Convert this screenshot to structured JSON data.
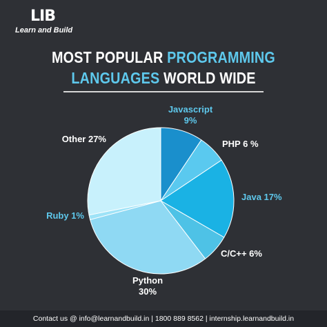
{
  "brand": {
    "mark": "LIB",
    "name": "Learn and Build"
  },
  "title": {
    "line1_a": "MOST POPULAR ",
    "line1_b": "PROGRAMMING",
    "line2_a": "LANGUAGES",
    "line2_b": " WORLD WIDE"
  },
  "footer": {
    "text": "Contact us @ info@learnandbuild.in | 1800 889 8562 | internship.learnandbuild.in"
  },
  "colors": {
    "background": "#2e3035",
    "accent": "#5ec8ec",
    "label_blue": "#5ec8ec",
    "label_white": "#ffffff"
  },
  "chart_data": {
    "type": "pie",
    "start_angle_deg": 0,
    "slices": [
      {
        "name": "Javascript",
        "value": 9,
        "label_line1": "Javascript",
        "label_line2": "9%",
        "color": "#1a8fcc",
        "label_color": "#5ec8ec"
      },
      {
        "name": "PHP",
        "value": 6,
        "label_line1": "PHP 6 %",
        "label_line2": "",
        "color": "#5ac9ef",
        "label_color": "#ffffff"
      },
      {
        "name": "Java",
        "value": 17,
        "label_line1": "Java 17%",
        "label_line2": "",
        "color": "#1ab2e4",
        "label_color": "#5ec8ec"
      },
      {
        "name": "C/C++",
        "value": 6,
        "label_line1": "C/C++ 6%",
        "label_line2": "",
        "color": "#4ec2e6",
        "label_color": "#ffffff"
      },
      {
        "name": "Python",
        "value": 30,
        "label_line1": "Python",
        "label_line2": "30%",
        "color": "#8fd9f3",
        "label_color": "#ffffff"
      },
      {
        "name": "Ruby",
        "value": 1,
        "label_line1": "Ruby 1%",
        "label_line2": "",
        "color": "#9ee3f7",
        "label_color": "#5ec8ec"
      },
      {
        "name": "Other",
        "value": 27,
        "label_line1": "Other 27%",
        "label_line2": "",
        "color": "#c8f1fc",
        "label_color": "#ffffff"
      }
    ]
  }
}
